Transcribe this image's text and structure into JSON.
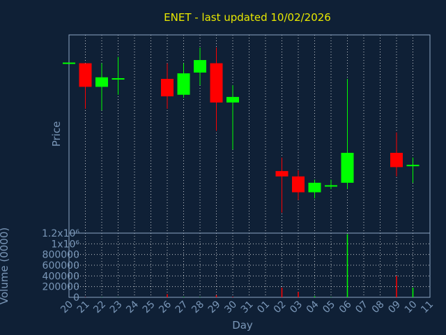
{
  "chart_data": {
    "type": "candlestick",
    "title": "ENET - last updated 10/02/2026",
    "xlabel": "Day",
    "ylabel_price": "Price",
    "ylabel_volume": "Volume (0000)",
    "x_ticks": [
      "20",
      "21",
      "22",
      "23",
      "24",
      "25",
      "26",
      "27",
      "28",
      "29",
      "30",
      "31",
      "01",
      "02",
      "03",
      "04",
      "05",
      "06",
      "07",
      "08",
      "09",
      "10",
      "11"
    ],
    "volume_ticks": [
      "0",
      "200000",
      "400000",
      "600000",
      "800000",
      "1x10⁶",
      "1.2x10⁶"
    ],
    "volume_ylim": [
      0,
      1200000
    ],
    "price_ylim": [
      0,
      100
    ],
    "price_axis_labels_shown": false,
    "colors": {
      "background": "#0f2036",
      "up": "#00ff00",
      "down": "#ff0000",
      "title": "#e8e800",
      "axis_text": "#7a97b8",
      "frame": "#8ea6c4",
      "grid": "#ffffff"
    },
    "candles": [
      {
        "day": "20",
        "open": 85.7,
        "close": 85.7,
        "high": 85.7,
        "low": 85.7
      },
      {
        "day": "21",
        "open": 85.7,
        "close": 73.8,
        "high": 85.7,
        "low": 62.7
      },
      {
        "day": "22",
        "open": 73.8,
        "close": 78.6,
        "high": 85.7,
        "low": 61.9
      },
      {
        "day": "23",
        "open": 77.8,
        "close": 77.8,
        "high": 88.9,
        "low": 69.8
      },
      {
        "day": "26",
        "open": 77.8,
        "close": 69.0,
        "high": 85.7,
        "low": 62.7
      },
      {
        "day": "27",
        "open": 69.8,
        "close": 80.6,
        "high": 85.7,
        "low": 68.3
      },
      {
        "day": "28",
        "open": 81.0,
        "close": 87.3,
        "high": 93.6,
        "low": 74.6
      },
      {
        "day": "29",
        "open": 85.7,
        "close": 65.9,
        "high": 93.6,
        "low": 51.6
      },
      {
        "day": "30",
        "open": 65.9,
        "close": 68.7,
        "high": 74.6,
        "low": 42.1
      },
      {
        "day": "02",
        "open": 31.3,
        "close": 28.6,
        "high": 38.1,
        "low": 10.3
      },
      {
        "day": "03",
        "open": 28.6,
        "close": 20.6,
        "high": 31.7,
        "low": 16.7
      },
      {
        "day": "04",
        "open": 20.6,
        "close": 25.4,
        "high": 27.0,
        "low": 17.5
      },
      {
        "day": "05",
        "open": 23.8,
        "close": 23.8,
        "high": 27.0,
        "low": 22.2
      },
      {
        "day": "06",
        "open": 25.4,
        "close": 40.5,
        "high": 77.8,
        "low": 22.2
      },
      {
        "day": "09",
        "open": 40.5,
        "close": 33.3,
        "high": 50.8,
        "low": 28.6
      },
      {
        "day": "10",
        "open": 34.1,
        "close": 34.1,
        "high": 38.1,
        "low": 25.4
      }
    ],
    "volume": [
      {
        "day": "20",
        "value": 0,
        "dir": "up"
      },
      {
        "day": "21",
        "value": 4000,
        "dir": "down"
      },
      {
        "day": "22",
        "value": 3000,
        "dir": "up"
      },
      {
        "day": "23",
        "value": 2000,
        "dir": "up"
      },
      {
        "day": "26",
        "value": 60000,
        "dir": "down"
      },
      {
        "day": "27",
        "value": 8000,
        "dir": "up"
      },
      {
        "day": "28",
        "value": 5000,
        "dir": "up"
      },
      {
        "day": "29",
        "value": 40000,
        "dir": "down"
      },
      {
        "day": "30",
        "value": 10000,
        "dir": "down"
      },
      {
        "day": "02",
        "value": 180000,
        "dir": "down"
      },
      {
        "day": "03",
        "value": 100000,
        "dir": "down"
      },
      {
        "day": "04",
        "value": 20000,
        "dir": "up"
      },
      {
        "day": "05",
        "value": 5000,
        "dir": "up"
      },
      {
        "day": "06",
        "value": 1180000,
        "dir": "up"
      },
      {
        "day": "09",
        "value": 400000,
        "dir": "down"
      },
      {
        "day": "10",
        "value": 180000,
        "dir": "up"
      }
    ],
    "grid": true,
    "legend": "none"
  }
}
